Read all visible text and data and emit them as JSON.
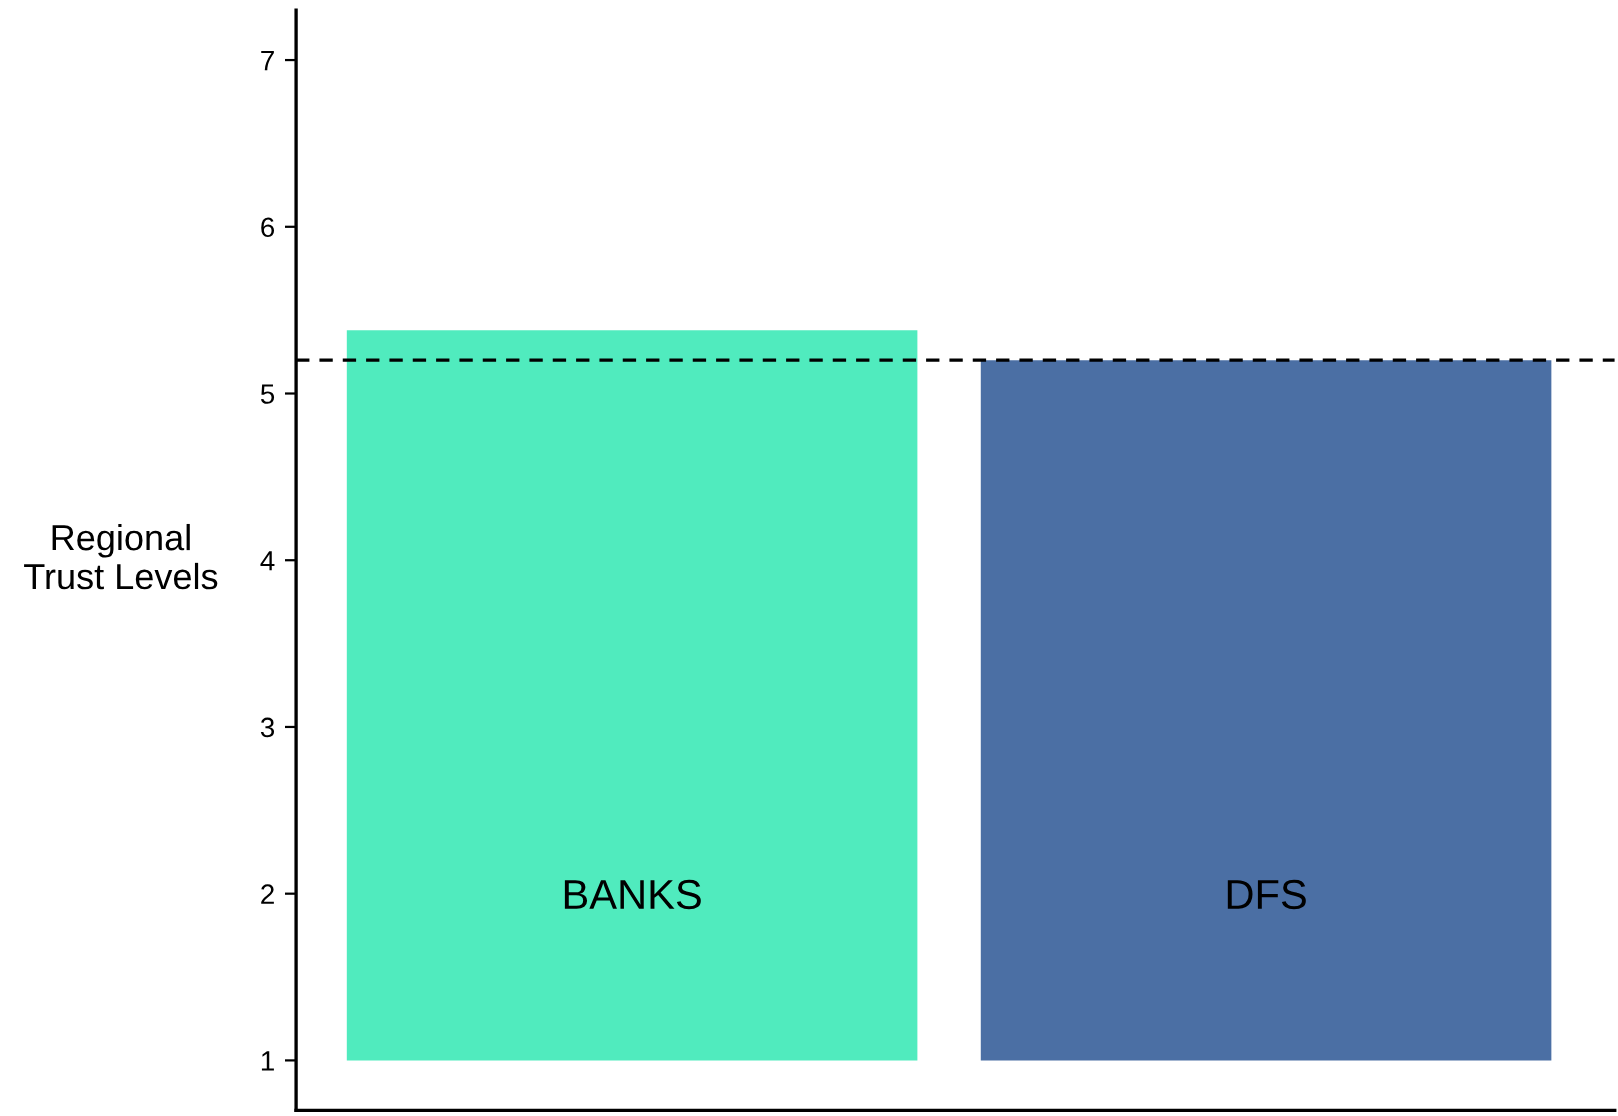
{
  "chart_data": {
    "type": "bar",
    "categories": [
      "BANKS",
      "DFS"
    ],
    "values": [
      4.38,
      4.2
    ],
    "base": [
      1,
      1
    ],
    "colors": [
      "#50ebbe",
      "#4b6fa4"
    ],
    "ylabel": "Regional\nTrust Levels",
    "ylim": [
      0.7,
      7.3
    ],
    "yticks": [
      1,
      2,
      3,
      4,
      5,
      6,
      7
    ],
    "ref_lines": [
      {
        "axis": "y",
        "value": 5.2,
        "line_style": "dashed",
        "color": "#000000"
      }
    ],
    "tick_labels": "y",
    "grid": false,
    "legend": false
  }
}
